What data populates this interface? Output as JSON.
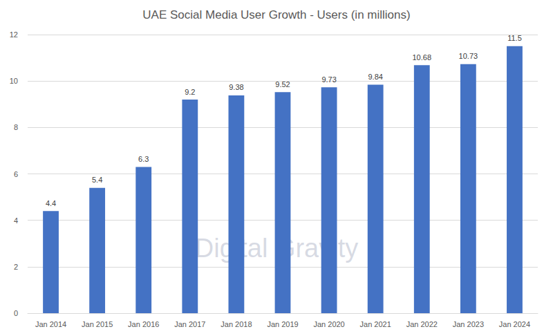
{
  "chart_data": {
    "type": "bar",
    "title": "UAE Social Media User Growth - Users (in millions)",
    "categories": [
      "Jan 2014",
      "Jan 2015",
      "Jan 2016",
      "Jan 2017",
      "Jan 2018",
      "Jan 2019",
      "Jan 2020",
      "Jan 2021",
      "Jan 2022",
      "Jan 2023",
      "Jan 2024"
    ],
    "values": [
      4.4,
      5.4,
      6.3,
      9.2,
      9.38,
      9.52,
      9.73,
      9.84,
      10.68,
      10.73,
      11.5
    ],
    "color": "#4472c4",
    "ylim": [
      0,
      12
    ],
    "yticks": [
      0,
      2,
      4,
      6,
      8,
      10,
      12
    ],
    "grid": true,
    "data_labels": true,
    "annotations": [
      "Digital Gravity"
    ]
  }
}
